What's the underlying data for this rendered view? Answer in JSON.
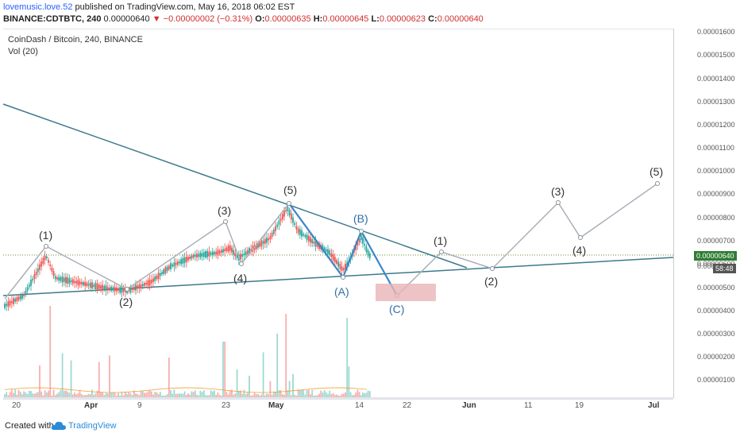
{
  "header": {
    "username": "lovemusic.love.52",
    "published_text": " published on TradingView.com, May 16, 2018 06:02 EST",
    "symbol_line": "BINANCE:CDTBTC, 240",
    "last": "0.00000640",
    "change_arrow": "▼",
    "change": "−0.00000002 (−0.31%)",
    "o_label": "O:",
    "o_val": "0.00000635",
    "h_label": "H:",
    "h_val": "0.00000645",
    "l_label": "L:",
    "l_val": "0.00000623",
    "c_label": "C:",
    "c_val": "0.00000640"
  },
  "legend": {
    "title": "CoinDash / Bitcoin, 240, BINANCE",
    "volume": "Vol (20)"
  },
  "price_axis": {
    "labels": [
      "0.00001600",
      "0.00001500",
      "0.00001400",
      "0.00001300",
      "0.00001200",
      "0.00001100",
      "0.00001000",
      "0.00000900",
      "0.00000800",
      "0.00000700",
      "0.00000600",
      "0.00000500",
      "0.00000400",
      "0.00000300",
      "0.00000200",
      "0.00000100"
    ],
    "current_price": "0.00000640",
    "countdown": "58:48",
    "partial_label": "0.000"
  },
  "time_axis": {
    "labels": [
      "20",
      "Apr",
      "9",
      "23",
      "May",
      "14",
      "22",
      "Jun",
      "11",
      "19",
      "Jul"
    ]
  },
  "waves": {
    "w1": "(1)",
    "w2": "(2)",
    "w3": "(3)",
    "w4": "(4)",
    "w5": "(5)",
    "wA": "(A)",
    "wB": "(B)",
    "wC": "(C)",
    "p1": "(1)",
    "p2": "(2)",
    "p3": "(3)",
    "p4": "(4)",
    "p5": "(5)"
  },
  "footer": {
    "created": "Created with",
    "brand": "TradingView"
  },
  "colors": {
    "up": "#26a69a",
    "down": "#ef5350",
    "trend": "#3b7a8c",
    "projection": "#aab0b8",
    "correction": "#3a86c8",
    "target_box": "#e8b4b8"
  }
}
